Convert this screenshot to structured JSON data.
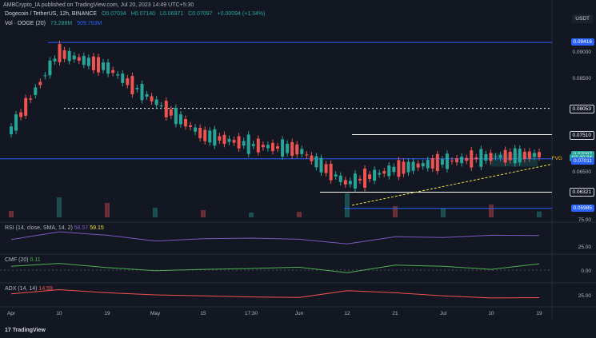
{
  "publisher": "AMBCrypto_IA published on TradingView.com, Jul 20, 2023 14:49 UTC+5:30",
  "header": {
    "symbol": "Dogecoin / TetherUS, 12h, BINANCE",
    "o": "O0.07034",
    "h": "H0.07140",
    "l": "L0.06971",
    "c": "C0.07097",
    "change": "+0.00094 (+1.34%)",
    "vol": "Vol · DOGE (20)",
    "vol_val1": "73.288M",
    "vol_val2": "509.763M"
  },
  "currency": "USDT",
  "y_ticks": [
    "0.09000",
    "0.08500",
    "0.06500"
  ],
  "price_pills": [
    {
      "label": "0.09416",
      "price": 0.09416,
      "color": "#2962ff"
    },
    {
      "label": "0.08053",
      "price": 0.08053,
      "color": "#131722"
    },
    {
      "label": "0.07510",
      "price": 0.0751,
      "color": "#131722"
    },
    {
      "label": "0.07097",
      "price": 0.07097,
      "color": "#26a69a"
    },
    {
      "label": "02:40:34",
      "price": 0.0703,
      "color": "#26a69a"
    },
    {
      "label": "0.07011",
      "price": 0.06955,
      "color": "#2962ff"
    },
    {
      "label": "0.06321",
      "price": 0.06321,
      "color": "#131722"
    },
    {
      "label": "0.05985",
      "price": 0.05985,
      "color": "#2962ff"
    }
  ],
  "annotation_fvg": "FVG",
  "rsi": {
    "title": "RSI (14, close, SMA, 14, 2)",
    "val1": "58.57",
    "val2": "59.15",
    "ticks": [
      "75.00",
      "25.00"
    ]
  },
  "cmf": {
    "title": "CMF (20)",
    "val": "0.11",
    "ticks": [
      "0.00"
    ]
  },
  "adx": {
    "title": "ADX (14, 14)",
    "val": "14.59",
    "ticks": [
      "25.00"
    ]
  },
  "x_labels": [
    "Apr",
    "10",
    "19",
    "May",
    "15",
    "17:30",
    "Jun",
    "12",
    "21",
    "Jul",
    "10",
    "19"
  ],
  "brand": "TradingView",
  "chart_data": {
    "type": "line",
    "title": "Dogecoin / TetherUS, 12h, BINANCE",
    "x": [
      "Apr",
      "10",
      "19",
      "May",
      "15",
      "17:30",
      "Jun",
      "12",
      "21",
      "Jul",
      "10",
      "19"
    ],
    "series": [
      {
        "name": "DOGE/USDT",
        "values": [
          0.076,
          0.092,
          0.089,
          0.082,
          0.075,
          0.073,
          0.072,
          0.065,
          0.068,
          0.0695,
          0.0705,
          0.07097
        ]
      }
    ],
    "levels": [
      0.09416,
      0.08053,
      0.0751,
      0.07011,
      0.06321,
      0.05985
    ],
    "ylim": [
      0.058,
      0.097
    ],
    "rsi_values": [
      45,
      72,
      60,
      40,
      48,
      50,
      46,
      30,
      55,
      52,
      60,
      59.15
    ],
    "cmf_values": [
      0.05,
      0.12,
      0.02,
      -0.05,
      -0.02,
      0.0,
      0.03,
      -0.1,
      0.08,
      0.05,
      -0.02,
      0.11
    ],
    "adx_values": [
      22,
      30,
      24,
      20,
      18,
      16,
      15,
      28,
      24,
      18,
      14,
      14.59
    ],
    "volume_millions": [
      80,
      250,
      180,
      120,
      90,
      60,
      70,
      300,
      140,
      110,
      160,
      73.288
    ]
  }
}
